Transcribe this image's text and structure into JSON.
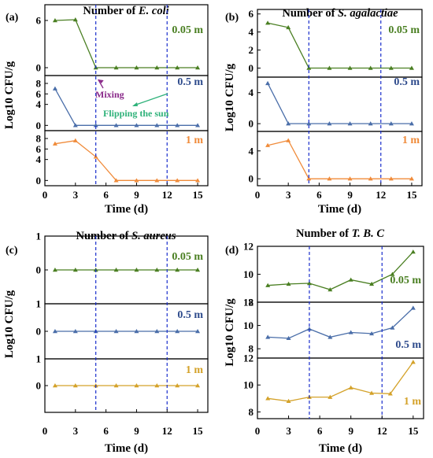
{
  "colors": {
    "green": "#4a7f22",
    "blue": "#4a6ea9",
    "orange": "#f08b3a",
    "gold": "#d4a22a",
    "vline": "#1a2ecc",
    "depth_green": "#4a7f22",
    "depth_blue": "#2e4b8c",
    "depth_orange": "#f08b3a",
    "depth_gold": "#d4a22a",
    "mixing": "#8a2a8a",
    "flipping": "#2fb27a"
  },
  "chart_data": [
    {
      "type": "line",
      "panel_label": "(a)",
      "title_prefix": "Number of ",
      "title_italic": "E. coli",
      "xlabel": "Time (d)",
      "ylabel": "Log10 CFU/g",
      "xlim": [
        0,
        16
      ],
      "xticks": [
        "0",
        "3",
        "6",
        "9",
        "12",
        "15"
      ],
      "vlines": [
        5,
        12
      ],
      "annotations": [
        "Mixing",
        "Flipping the sun"
      ],
      "series": [
        {
          "name": "0.05 m",
          "color_key": "green",
          "ylim": [
            -1,
            8
          ],
          "yticks": [
            "0",
            "6"
          ],
          "ytick_values": [
            0,
            6
          ],
          "x": [
            1,
            3,
            5,
            7,
            9,
            11,
            13,
            15
          ],
          "values": [
            6.0,
            6.1,
            0,
            0,
            0,
            0,
            0,
            0
          ]
        },
        {
          "name": "0.5 m",
          "color_key": "blue",
          "ylim": [
            -1,
            9.5
          ],
          "yticks": [
            "0",
            "4",
            "6",
            "8"
          ],
          "ytick_values": [
            0,
            4,
            6,
            8
          ],
          "x": [
            1,
            3,
            5,
            7,
            9,
            11,
            13,
            15
          ],
          "values": [
            7.0,
            0,
            0,
            0,
            0,
            0,
            0,
            0
          ]
        },
        {
          "name": "1 m",
          "color_key": "orange",
          "ylim": [
            -1,
            9.5
          ],
          "yticks": [
            "0",
            "4",
            "6",
            "8"
          ],
          "ytick_values": [
            0,
            4,
            6,
            8
          ],
          "x": [
            1,
            3,
            5,
            7,
            9,
            11,
            13,
            15
          ],
          "values": [
            7.0,
            7.6,
            4.5,
            0,
            0,
            0,
            0,
            0
          ]
        }
      ]
    },
    {
      "type": "line",
      "panel_label": "(b)",
      "title_prefix": "Number of ",
      "title_italic": "S. agalactiae",
      "xlabel": "Time (d)",
      "ylabel": "Log10 CFU/g",
      "xlim": [
        0,
        16
      ],
      "xticks": [
        "0",
        "3",
        "6",
        "9",
        "12",
        "15"
      ],
      "vlines": [
        5,
        12
      ],
      "series": [
        {
          "name": "0.05 m",
          "color_key": "green",
          "ylim": [
            -1,
            6.5
          ],
          "yticks": [
            "0",
            "2",
            "4",
            "6"
          ],
          "ytick_values": [
            0,
            2,
            4,
            6
          ],
          "x": [
            1,
            3,
            5,
            7,
            9,
            11,
            13,
            15
          ],
          "values": [
            5.0,
            4.5,
            0,
            0,
            0,
            0,
            0,
            0
          ]
        },
        {
          "name": "0.5 m",
          "color_key": "blue",
          "ylim": [
            -1,
            6
          ],
          "yticks": [
            "0",
            "4"
          ],
          "ytick_values": [
            0,
            4
          ],
          "x": [
            1,
            3,
            5,
            7,
            9,
            11,
            13,
            15
          ],
          "values": [
            5.2,
            0,
            0,
            0,
            0,
            0,
            0,
            0
          ]
        },
        {
          "name": "1 m",
          "color_key": "orange",
          "ylim": [
            -1,
            6.8
          ],
          "yticks": [
            "0",
            "4"
          ],
          "ytick_values": [
            0,
            4
          ],
          "x": [
            1,
            3,
            5,
            7,
            9,
            11,
            13,
            15
          ],
          "values": [
            4.8,
            5.5,
            0,
            0,
            0,
            0,
            0,
            0
          ]
        }
      ]
    },
    {
      "type": "line",
      "panel_label": "(c)",
      "title_prefix": "Number of ",
      "title_italic": "S. aureus",
      "xlabel": "Time (d)",
      "ylabel": "Log10 CFU/g",
      "xlim": [
        0,
        16
      ],
      "xticks": [
        "0",
        "3",
        "6",
        "9",
        "12",
        "15"
      ],
      "vlines": [
        5,
        12
      ],
      "series": [
        {
          "name": "0.05 m",
          "color_key": "green",
          "ylim": [
            -1,
            1
          ],
          "yticks": [
            "0",
            "1"
          ],
          "ytick_values": [
            0,
            1
          ],
          "x": [
            1,
            3,
            5,
            7,
            9,
            11,
            13,
            15
          ],
          "values": [
            0,
            0,
            0,
            0,
            0,
            0,
            0,
            0
          ]
        },
        {
          "name": "0.5 m",
          "color_key": "blue",
          "ylim": [
            -1,
            1
          ],
          "yticks": [
            "0",
            "1"
          ],
          "ytick_values": [
            0,
            1
          ],
          "x": [
            1,
            3,
            5,
            7,
            9,
            11,
            13,
            15
          ],
          "values": [
            0,
            0,
            0,
            0,
            0,
            0,
            0,
            0
          ]
        },
        {
          "name": "1 m",
          "color_key": "gold",
          "ylim": [
            -1,
            1
          ],
          "yticks": [
            "0",
            "1"
          ],
          "ytick_values": [
            0,
            1
          ],
          "x": [
            1,
            3,
            5,
            7,
            9,
            11,
            13,
            15
          ],
          "values": [
            0,
            0,
            0,
            0,
            0,
            0,
            0,
            0
          ]
        }
      ]
    },
    {
      "type": "line",
      "panel_label": "(d)",
      "title_prefix": "Number of ",
      "title_italic": "T. B. C",
      "xlabel": "Time (d)",
      "ylabel": "Log10 CFU/g",
      "xlim": [
        0,
        16
      ],
      "xticks": [
        "0",
        "3",
        "6",
        "9",
        "12",
        "15"
      ],
      "vlines": [
        5,
        12
      ],
      "series": [
        {
          "name": "0.05 m",
          "color_key": "green",
          "ylim": [
            8,
            12
          ],
          "yticks": [
            "8",
            "10",
            "12"
          ],
          "ytick_values": [
            8,
            10,
            12
          ],
          "x": [
            1,
            3,
            5,
            7,
            9,
            11,
            13,
            15
          ],
          "values": [
            9.2,
            9.3,
            9.35,
            8.9,
            9.6,
            9.3,
            10.0,
            11.6
          ]
        },
        {
          "name": "0.5 m",
          "color_key": "blue",
          "ylim": [
            7.2,
            12
          ],
          "yticks": [
            "8",
            "10",
            "12"
          ],
          "ytick_values": [
            8,
            10,
            12
          ],
          "x": [
            1,
            3,
            5,
            7,
            9,
            11,
            13,
            15
          ],
          "values": [
            9.0,
            8.9,
            9.7,
            9.0,
            9.4,
            9.3,
            9.8,
            11.5
          ]
        },
        {
          "name": "1 m",
          "color_key": "gold",
          "ylim": [
            7.5,
            12
          ],
          "yticks": [
            "8",
            "10",
            "12"
          ],
          "ytick_values": [
            8,
            10,
            12
          ],
          "x": [
            1,
            3,
            5,
            7,
            9,
            11,
            12.8,
            15
          ],
          "values": [
            9.0,
            8.8,
            9.1,
            9.1,
            9.8,
            9.4,
            9.35,
            11.7
          ]
        }
      ]
    }
  ]
}
